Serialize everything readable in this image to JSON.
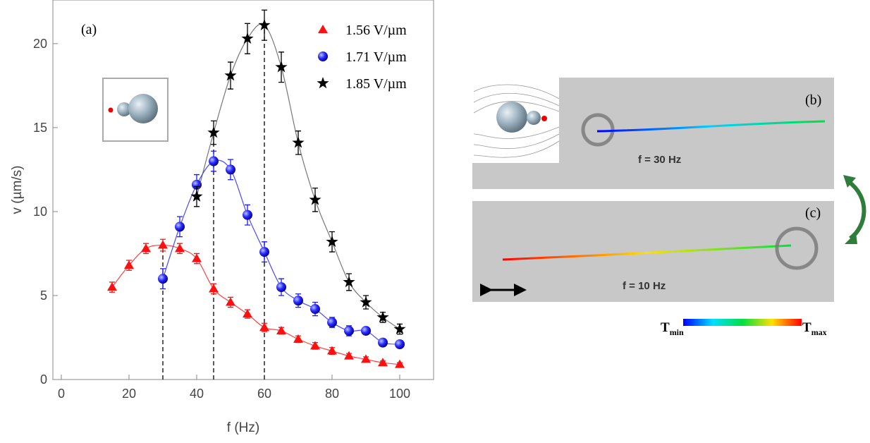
{
  "chart_data": {
    "type": "scatter",
    "panel_label": "(a)",
    "x_label": "f (Hz)",
    "y_label": "v (µm/s)",
    "xlim": [
      -2.5,
      110
    ],
    "ylim": [
      0,
      22.6
    ],
    "xticks": [
      0,
      20,
      40,
      60,
      80,
      100
    ],
    "yticks": [
      0,
      5,
      10,
      15,
      20
    ],
    "legend": "upper right",
    "dashed_lines_x": [
      30,
      45,
      60
    ],
    "series": [
      {
        "name": "1.56 V/µm",
        "color": "#ff1010",
        "marker": "triangle",
        "x": [
          15,
          20,
          25,
          30,
          35,
          40,
          45,
          50,
          55,
          60,
          65,
          70,
          75,
          80,
          85,
          90,
          95,
          100
        ],
        "values": [
          5.5,
          6.8,
          7.8,
          8.0,
          7.8,
          7.2,
          5.4,
          4.6,
          3.9,
          3.1,
          2.9,
          2.4,
          2.0,
          1.7,
          1.4,
          1.2,
          1.0,
          0.9
        ],
        "errors": [
          0.3,
          0.3,
          0.3,
          0.35,
          0.3,
          0.3,
          0.3,
          0.3,
          0.25,
          0.25,
          0.2,
          0.2,
          0.2,
          0.2,
          0.15,
          0.15,
          0.1,
          0.1
        ]
      },
      {
        "name": "1.71 V/µm",
        "color": "#1a1aff",
        "marker": "sphere",
        "x": [
          30,
          35,
          40,
          45,
          50,
          55,
          60,
          65,
          70,
          75,
          80,
          85,
          90,
          95,
          100
        ],
        "values": [
          6.0,
          9.1,
          11.6,
          13.0,
          12.5,
          9.8,
          7.6,
          5.5,
          4.7,
          4.2,
          3.4,
          2.9,
          2.9,
          2.2,
          2.1
        ],
        "errors": [
          0.6,
          0.6,
          0.6,
          0.6,
          0.6,
          0.6,
          0.6,
          0.5,
          0.4,
          0.4,
          0.3,
          0.3,
          0.2,
          0.2,
          0.2
        ]
      },
      {
        "name": "1.85 V/µm",
        "color": "#000000",
        "marker": "star",
        "x": [
          40,
          45,
          50,
          55,
          60,
          65,
          70,
          75,
          80,
          85,
          90,
          95,
          100
        ],
        "values": [
          10.9,
          14.7,
          18.1,
          20.3,
          21.1,
          18.6,
          14.1,
          10.7,
          8.2,
          5.8,
          4.6,
          3.7,
          3.0
        ],
        "errors": [
          0.6,
          0.7,
          0.8,
          0.9,
          0.9,
          0.9,
          0.7,
          0.7,
          0.6,
          0.5,
          0.4,
          0.3,
          0.3
        ]
      }
    ]
  },
  "panels": [
    {
      "label": "(b)",
      "text": "f = 30 Hz"
    },
    {
      "label": "(c)",
      "text": "f = 10 Hz"
    }
  ],
  "colorbar": {
    "min_label": "T",
    "min_sub": "min",
    "max_label": "T",
    "max_sub": "max"
  }
}
